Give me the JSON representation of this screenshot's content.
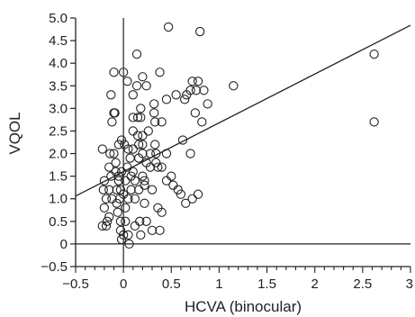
{
  "chart_data": {
    "type": "scatter",
    "title": "",
    "xlabel": "HCVA (binocular)",
    "ylabel": "VQOL",
    "xlim": [
      -0.5,
      3.0
    ],
    "ylim": [
      -0.5,
      5.0
    ],
    "x_ticks": [
      -0.5,
      0,
      0.5,
      1,
      1.5,
      2,
      2.5,
      3
    ],
    "x_tick_labels": [
      "−0.5",
      "0",
      "0.5",
      "1",
      "1.5",
      "2",
      "2.5",
      "3"
    ],
    "y_ticks": [
      -0.5,
      0,
      0.5,
      1.0,
      1.5,
      2.0,
      2.5,
      3.0,
      3.5,
      4.0,
      4.5,
      5.0
    ],
    "y_tick_labels": [
      "−0.5",
      "0",
      "0.5",
      "1.0",
      "1.5",
      "2.0",
      "2.5",
      "3.0",
      "3.5",
      "4.0",
      "4.5",
      "5.0"
    ],
    "grid": false,
    "reference_lines": {
      "x": 0,
      "y": 0
    },
    "regression_line": {
      "intercept": 1.6,
      "slope": 1.08
    },
    "series": [
      {
        "points": [
          [
            -0.22,
            2.1
          ],
          [
            -0.2,
            1.4
          ],
          [
            -0.21,
            1.2
          ],
          [
            -0.18,
            1.0
          ],
          [
            -0.2,
            0.8
          ],
          [
            -0.17,
            0.5
          ],
          [
            -0.22,
            0.4
          ],
          [
            -0.18,
            0.4
          ],
          [
            -0.15,
            1.7
          ],
          [
            -0.13,
            1.5
          ],
          [
            -0.15,
            1.2
          ],
          [
            -0.12,
            1.0
          ],
          [
            -0.15,
            0.6
          ],
          [
            -0.14,
            2.0
          ],
          [
            -0.12,
            2.7
          ],
          [
            -0.13,
            3.3
          ],
          [
            -0.1,
            3.8
          ],
          [
            -0.1,
            2.9
          ],
          [
            -0.09,
            2.9
          ],
          [
            -0.1,
            2.0
          ],
          [
            -0.08,
            1.8
          ],
          [
            -0.08,
            1.6
          ],
          [
            -0.07,
            1.2
          ],
          [
            -0.07,
            0.9
          ],
          [
            -0.06,
            0.7
          ],
          [
            -0.05,
            1.5
          ],
          [
            -0.05,
            1.4
          ],
          [
            -0.05,
            2.2
          ],
          [
            -0.03,
            1.2
          ],
          [
            -0.03,
            0.5
          ],
          [
            -0.03,
            0.3
          ],
          [
            -0.04,
            1.0
          ],
          [
            -0.02,
            1.6
          ],
          [
            -0.02,
            2.3
          ],
          [
            -0.02,
            0.1
          ],
          [
            0.0,
            3.8
          ],
          [
            0.01,
            2.2
          ],
          [
            0.02,
            1.4
          ],
          [
            0.0,
            1.1
          ],
          [
            0.02,
            0.8
          ],
          [
            0.02,
            0.5
          ],
          [
            0.0,
            0.2
          ],
          [
            0.04,
            3.6
          ],
          [
            0.05,
            2.1
          ],
          [
            0.04,
            1.7
          ],
          [
            0.05,
            1.0
          ],
          [
            0.06,
            0.0
          ],
          [
            0.05,
            0.2
          ],
          [
            0.07,
            1.9
          ],
          [
            0.08,
            1.5
          ],
          [
            0.08,
            1.2
          ],
          [
            0.1,
            3.3
          ],
          [
            0.1,
            2.8
          ],
          [
            0.1,
            2.5
          ],
          [
            0.1,
            2.1
          ],
          [
            0.1,
            1.6
          ],
          [
            0.12,
            1.4
          ],
          [
            0.12,
            1.0
          ],
          [
            0.12,
            0.4
          ],
          [
            0.14,
            4.2
          ],
          [
            0.14,
            3.5
          ],
          [
            0.15,
            2.8
          ],
          [
            0.15,
            2.4
          ],
          [
            0.16,
            2.2
          ],
          [
            0.16,
            1.9
          ],
          [
            0.16,
            1.2
          ],
          [
            0.17,
            0.5
          ],
          [
            0.18,
            0.2
          ],
          [
            0.18,
            3.0
          ],
          [
            0.18,
            2.8
          ],
          [
            0.2,
            3.7
          ],
          [
            0.2,
            2.4
          ],
          [
            0.2,
            2.2
          ],
          [
            0.2,
            2.0
          ],
          [
            0.2,
            1.5
          ],
          [
            0.22,
            1.4
          ],
          [
            0.22,
            1.3
          ],
          [
            0.22,
            0.9
          ],
          [
            0.24,
            3.5
          ],
          [
            0.24,
            1.8
          ],
          [
            0.24,
            0.5
          ],
          [
            0.26,
            2.5
          ],
          [
            0.28,
            2.0
          ],
          [
            0.28,
            1.7
          ],
          [
            0.3,
            1.2
          ],
          [
            0.3,
            0.3
          ],
          [
            0.32,
            3.1
          ],
          [
            0.32,
            2.9
          ],
          [
            0.33,
            2.7
          ],
          [
            0.33,
            2.2
          ],
          [
            0.34,
            2.0
          ],
          [
            0.34,
            1.8
          ],
          [
            0.36,
            1.7
          ],
          [
            0.36,
            0.8
          ],
          [
            0.38,
            3.8
          ],
          [
            0.38,
            0.3
          ],
          [
            0.4,
            2.7
          ],
          [
            0.4,
            1.7
          ],
          [
            0.4,
            0.7
          ],
          [
            0.45,
            3.2
          ],
          [
            0.45,
            2.0
          ],
          [
            0.45,
            1.4
          ],
          [
            0.47,
            4.8
          ],
          [
            0.5,
            1.5
          ],
          [
            0.52,
            1.3
          ],
          [
            0.55,
            3.3
          ],
          [
            0.57,
            1.2
          ],
          [
            0.6,
            1.1
          ],
          [
            0.62,
            2.3
          ],
          [
            0.64,
            3.2
          ],
          [
            0.65,
            0.9
          ],
          [
            0.66,
            3.3
          ],
          [
            0.7,
            2.0
          ],
          [
            0.7,
            3.4
          ],
          [
            0.72,
            3.6
          ],
          [
            0.72,
            1.0
          ],
          [
            0.75,
            2.9
          ],
          [
            0.76,
            3.4
          ],
          [
            0.78,
            3.6
          ],
          [
            0.78,
            1.1
          ],
          [
            0.8,
            4.7
          ],
          [
            0.82,
            2.7
          ],
          [
            0.84,
            3.4
          ],
          [
            0.88,
            3.1
          ],
          [
            1.15,
            3.5
          ],
          [
            2.62,
            4.2
          ],
          [
            2.62,
            2.7
          ]
        ]
      }
    ]
  }
}
